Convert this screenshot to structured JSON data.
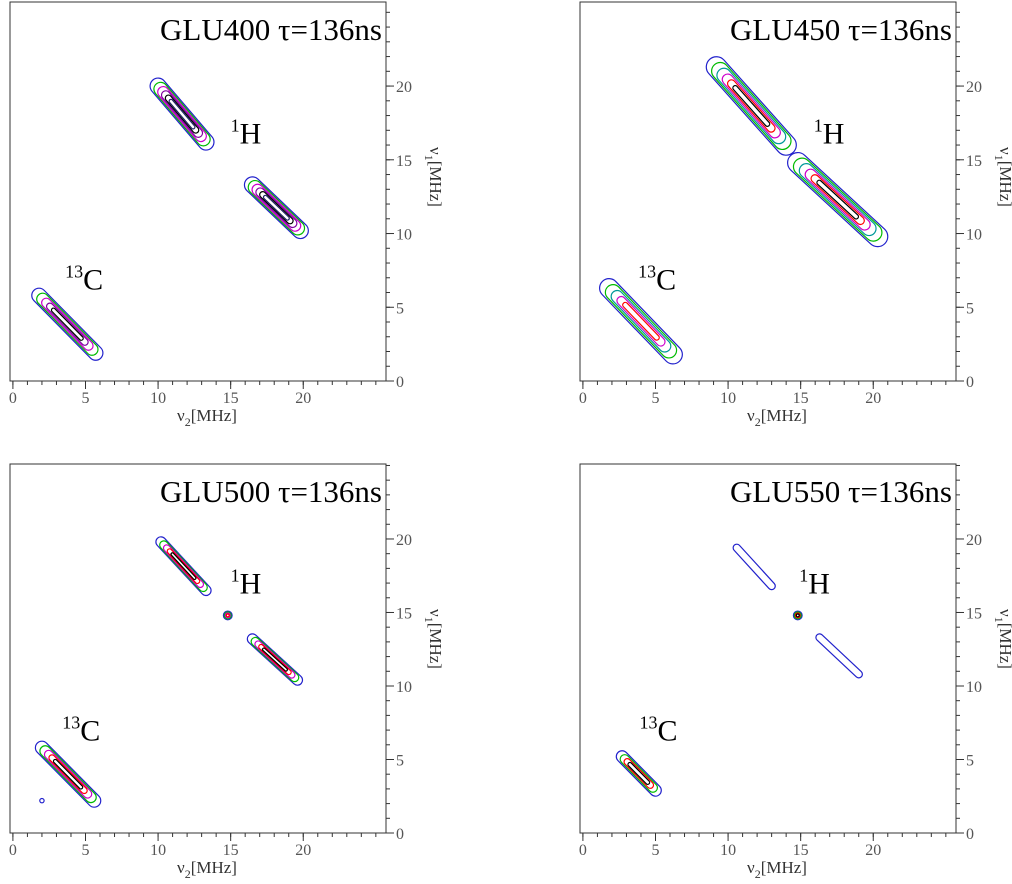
{
  "chart_data": [
    {
      "type": "contour",
      "title": "GLU400 τ=136ns",
      "xlabel": {
        "symbol": "ν",
        "sub": "2",
        "unit": "[MHz]"
      },
      "ylabel": {
        "symbol": "ν",
        "sub": "1",
        "unit": "[MHz]"
      },
      "xlim": [
        -0.2,
        25.7
      ],
      "ylim": [
        0,
        25.7
      ],
      "xticks": [
        0,
        5,
        10,
        15,
        20
      ],
      "yticks": [
        0,
        5,
        10,
        15,
        20
      ],
      "minor_tick_step": 1,
      "contour_colors": [
        "#2222cc",
        "#00bb00",
        "#cc00cc",
        "#8000a0",
        "#000000",
        "#222266"
      ],
      "ridges": [
        {
          "x": [
            10,
            13.3
          ],
          "y": [
            20,
            16.2
          ],
          "width": 1.1,
          "levels": 6
        },
        {
          "x": [
            16.5,
            19.8
          ],
          "y": [
            13.3,
            10.2
          ],
          "width": 1.1,
          "levels": 6
        },
        {
          "x": [
            1.8,
            5.7
          ],
          "y": [
            5.8,
            1.9
          ],
          "width": 1.0,
          "levels": 5
        }
      ],
      "annotations": [
        {
          "sup": "1",
          "text": "H",
          "at": [
            15,
            16.1
          ]
        },
        {
          "sup": "13",
          "text": "C",
          "at": [
            3.6,
            6.2
          ]
        }
      ]
    },
    {
      "type": "contour",
      "title": "GLU450 τ=136ns",
      "xlabel": {
        "symbol": "ν",
        "sub": "2",
        "unit": "[MHz]"
      },
      "ylabel": {
        "symbol": "ν",
        "sub": "1",
        "unit": "[MHz]"
      },
      "xlim": [
        -0.2,
        25.7
      ],
      "ylim": [
        0,
        25.7
      ],
      "xticks": [
        0,
        5,
        10,
        15,
        20
      ],
      "yticks": [
        0,
        5,
        10,
        15,
        20
      ],
      "minor_tick_step": 1,
      "contour_colors": [
        "#2222cc",
        "#00bb00",
        "#009999",
        "#cc00cc",
        "#ff0000",
        "#000000"
      ],
      "ridges": [
        {
          "x": [
            9.2,
            14
          ],
          "y": [
            21.3,
            16
          ],
          "width": 1.4,
          "levels": 6
        },
        {
          "x": [
            14.8,
            20.3
          ],
          "y": [
            14.8,
            9.8
          ],
          "width": 1.4,
          "levels": 6
        },
        {
          "x": [
            1.8,
            6.2
          ],
          "y": [
            6.3,
            1.8
          ],
          "width": 1.3,
          "levels": 5
        }
      ],
      "annotations": [
        {
          "sup": "1",
          "text": "H",
          "at": [
            15.9,
            16.1
          ]
        },
        {
          "sup": "13",
          "text": "C",
          "at": [
            3.8,
            6.2
          ]
        }
      ]
    },
    {
      "type": "contour",
      "title": "GLU500 τ=136ns",
      "xlabel": {
        "symbol": "ν",
        "sub": "2",
        "unit": "[MHz]"
      },
      "ylabel": {
        "symbol": "ν",
        "sub": "1",
        "unit": "[MHz]"
      },
      "xlim": [
        -0.2,
        25.7
      ],
      "ylim": [
        0,
        25.1
      ],
      "xticks": [
        0,
        5,
        10,
        15,
        20
      ],
      "yticks": [
        0,
        5,
        10,
        15,
        20
      ],
      "minor_tick_step": 1,
      "contour_colors": [
        "#2222cc",
        "#00bb00",
        "#cc00cc",
        "#ff0000",
        "#000000"
      ],
      "ridges": [
        {
          "x": [
            10.2,
            13.3
          ],
          "y": [
            19.8,
            16.5
          ],
          "width": 0.7,
          "levels": 5
        },
        {
          "x": [
            14.8,
            14.8
          ],
          "y": [
            14.8,
            14.8
          ],
          "width": 0.6,
          "levels": 4
        },
        {
          "x": [
            16.5,
            19.6
          ],
          "y": [
            13.2,
            10.4
          ],
          "width": 0.7,
          "levels": 5
        },
        {
          "x": [
            2,
            5.6
          ],
          "y": [
            5.8,
            2.2
          ],
          "width": 0.9,
          "levels": 5
        },
        {
          "x": [
            2,
            2
          ],
          "y": [
            2.2,
            2.2
          ],
          "width": 0.3,
          "levels": 1
        }
      ],
      "annotations": [
        {
          "sup": "1",
          "text": "H",
          "at": [
            15,
            16.3
          ]
        },
        {
          "sup": "13",
          "text": "C",
          "at": [
            3.4,
            6.3
          ]
        }
      ]
    },
    {
      "type": "contour",
      "title": "GLU550 τ=136ns",
      "xlabel": {
        "symbol": "ν",
        "sub": "2",
        "unit": "[MHz]"
      },
      "ylabel": {
        "symbol": "ν",
        "sub": "1",
        "unit": "[MHz]"
      },
      "xlim": [
        -0.2,
        25.7
      ],
      "ylim": [
        0,
        25.1
      ],
      "xticks": [
        0,
        5,
        10,
        15,
        20
      ],
      "yticks": [
        0,
        5,
        10,
        15,
        20
      ],
      "minor_tick_step": 1,
      "contour_colors": [
        "#2222cc",
        "#00bb00",
        "#ff0000",
        "#000000"
      ],
      "ridges": [
        {
          "x": [
            10.6,
            13
          ],
          "y": [
            19.4,
            16.8
          ],
          "width": 0.5,
          "levels": 1
        },
        {
          "x": [
            14.8,
            14.8
          ],
          "y": [
            14.8,
            14.8
          ],
          "width": 0.6,
          "levels": 4
        },
        {
          "x": [
            16.3,
            19
          ],
          "y": [
            13.3,
            10.8
          ],
          "width": 0.5,
          "levels": 1
        },
        {
          "x": [
            2.7,
            5
          ],
          "y": [
            5.2,
            2.9
          ],
          "width": 0.8,
          "levels": 4
        }
      ],
      "annotations": [
        {
          "sup": "1",
          "text": "H",
          "at": [
            14.9,
            16.3
          ]
        },
        {
          "sup": "13",
          "text": "C",
          "at": [
            3.9,
            6.3
          ]
        }
      ]
    }
  ]
}
